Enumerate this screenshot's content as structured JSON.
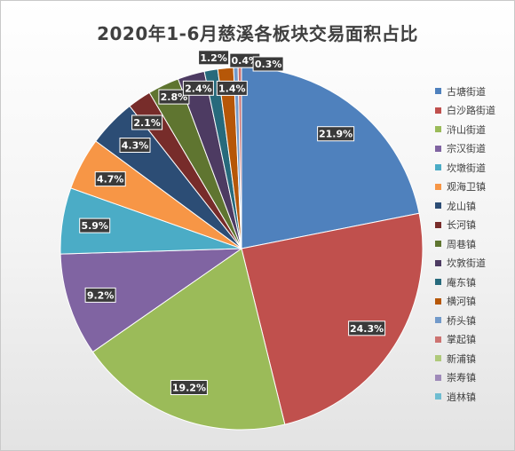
{
  "chart_data": {
    "type": "pie",
    "title": "2020年1-6月慈溪各板块交易面积占比",
    "categories": [
      "古塘街道",
      "白沙路街道",
      "浒山街道",
      "宗汉街道",
      "坎墩街道",
      "观海卫镇",
      "龙山镇",
      "长河镇",
      "周巷镇",
      "坎敦街道",
      "庵东镇",
      "横河镇",
      "桥头镇",
      "掌起镇",
      "新浦镇",
      "崇寿镇",
      "逍林镇"
    ],
    "values": [
      21.9,
      24.3,
      19.2,
      9.2,
      5.9,
      4.7,
      4.3,
      2.1,
      2.8,
      2.4,
      1.2,
      1.4,
      0.4,
      0.3,
      0.0,
      0.0,
      0.0
    ],
    "labels": [
      "21.9%",
      "24.3%",
      "19.2%",
      "9.2%",
      "5.9%",
      "4.7%",
      "4.3%",
      "2.1%",
      "2.8%",
      "2.4%",
      "1.2%",
      "1.4%",
      "0.4%",
      "0.3%",
      "",
      "",
      ""
    ],
    "colors": [
      "#4F81BD",
      "#C0504D",
      "#9BBB59",
      "#8064A2",
      "#4BACC6",
      "#F79646",
      "#2C4D75",
      "#772C2A",
      "#5F7530",
      "#4D3B62",
      "#276A7C",
      "#B65708",
      "#729ACA",
      "#CD7371",
      "#AFC97A",
      "#9F8AB9",
      "#6FBDD1"
    ],
    "legend_position": "right",
    "start": "12 o'clock, clockwise"
  }
}
